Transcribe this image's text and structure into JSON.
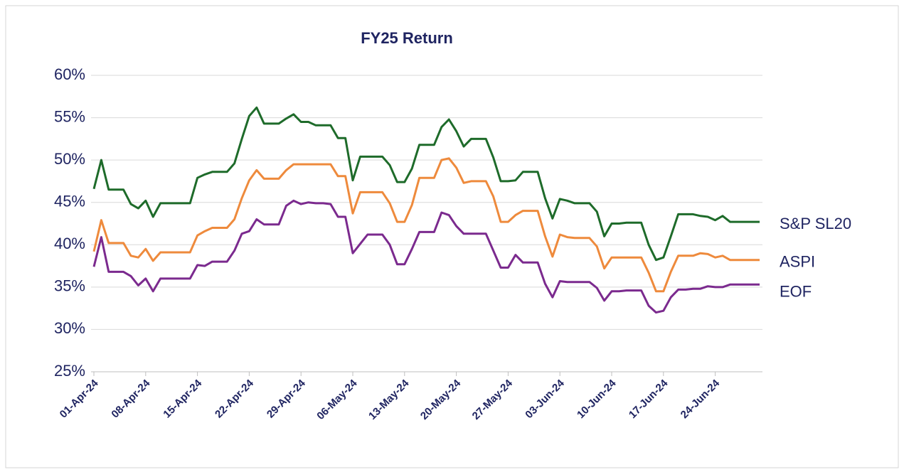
{
  "chart_data": {
    "type": "line",
    "title": "FY25 Return",
    "categories": [
      "01-Apr-24",
      null,
      null,
      null,
      null,
      null,
      null,
      "08-Apr-24",
      null,
      null,
      null,
      null,
      null,
      null,
      "15-Apr-24",
      null,
      null,
      null,
      null,
      null,
      null,
      "22-Apr-24",
      null,
      null,
      null,
      null,
      null,
      null,
      "29-Apr-24",
      null,
      null,
      null,
      null,
      null,
      null,
      "06-May-24",
      null,
      null,
      null,
      null,
      null,
      null,
      "13-May-24",
      null,
      null,
      null,
      null,
      null,
      null,
      "20-May-24",
      null,
      null,
      null,
      null,
      null,
      null,
      "27-May-24",
      null,
      null,
      null,
      null,
      null,
      null,
      "03-Jun-24",
      null,
      null,
      null,
      null,
      null,
      null,
      "10-Jun-24",
      null,
      null,
      null,
      null,
      null,
      null,
      "17-Jun-24",
      null,
      null,
      null,
      null,
      null,
      null,
      "24-Jun-24",
      null,
      null,
      null,
      null,
      null,
      null
    ],
    "series": [
      {
        "name": "S&P SL20",
        "color": "#1e6b2a",
        "values": [
          46.6,
          50.0,
          46.5,
          46.5,
          46.5,
          44.8,
          44.3,
          45.2,
          43.3,
          44.9,
          44.9,
          44.9,
          44.9,
          44.9,
          47.9,
          48.3,
          48.6,
          48.6,
          48.6,
          49.6,
          52.5,
          55.2,
          56.2,
          54.3,
          54.3,
          54.3,
          54.9,
          55.4,
          54.5,
          54.5,
          54.1,
          54.1,
          54.1,
          52.6,
          52.6,
          47.6,
          50.4,
          50.4,
          50.4,
          50.4,
          49.4,
          47.4,
          47.4,
          49.0,
          51.8,
          51.8,
          51.8,
          53.9,
          54.8,
          53.4,
          51.6,
          52.5,
          52.5,
          52.5,
          50.3,
          47.5,
          47.5,
          47.6,
          48.6,
          48.6,
          48.6,
          45.5,
          43.1,
          45.4,
          45.2,
          44.9,
          44.9,
          44.9,
          43.9,
          41.0,
          42.5,
          42.5,
          42.6,
          42.6,
          42.6,
          40.0,
          38.2,
          38.5,
          41.0,
          43.6,
          43.6,
          43.6,
          43.4,
          43.3,
          42.9,
          43.4,
          42.7,
          42.7,
          42.7,
          42.7,
          42.7
        ]
      },
      {
        "name": "ASPI",
        "color": "#ee8a3c",
        "values": [
          39.2,
          42.9,
          40.2,
          40.2,
          40.2,
          38.7,
          38.5,
          39.5,
          38.1,
          39.1,
          39.1,
          39.1,
          39.1,
          39.1,
          41.1,
          41.6,
          42.0,
          42.0,
          42.0,
          43.0,
          45.5,
          47.6,
          48.8,
          47.8,
          47.8,
          47.8,
          48.8,
          49.5,
          49.5,
          49.5,
          49.5,
          49.5,
          49.5,
          48.1,
          48.1,
          43.7,
          46.2,
          46.2,
          46.2,
          46.2,
          44.9,
          42.7,
          42.7,
          44.7,
          47.9,
          47.9,
          47.9,
          50.0,
          50.2,
          49.1,
          47.3,
          47.5,
          47.5,
          47.5,
          45.7,
          42.7,
          42.7,
          43.5,
          44.0,
          44.0,
          44.0,
          41.0,
          38.6,
          41.2,
          40.9,
          40.8,
          40.8,
          40.8,
          39.8,
          37.2,
          38.5,
          38.5,
          38.5,
          38.5,
          38.5,
          36.7,
          34.5,
          34.5,
          36.8,
          38.7,
          38.7,
          38.7,
          39.0,
          38.9,
          38.5,
          38.7,
          38.2,
          38.2,
          38.2,
          38.2,
          38.2
        ]
      },
      {
        "name": "EOF",
        "color": "#7b2a8e",
        "values": [
          37.4,
          40.9,
          36.8,
          36.8,
          36.8,
          36.3,
          35.2,
          36.0,
          34.5,
          36.0,
          36.0,
          36.0,
          36.0,
          36.0,
          37.6,
          37.5,
          38.0,
          38.0,
          38.0,
          39.3,
          41.3,
          41.6,
          43.0,
          42.4,
          42.4,
          42.4,
          44.6,
          45.2,
          44.8,
          45.0,
          44.9,
          44.9,
          44.8,
          43.3,
          43.3,
          39.0,
          40.1,
          41.2,
          41.2,
          41.2,
          40.0,
          37.7,
          37.7,
          39.5,
          41.5,
          41.5,
          41.5,
          43.8,
          43.5,
          42.2,
          41.3,
          41.3,
          41.3,
          41.3,
          39.3,
          37.3,
          37.3,
          38.8,
          37.9,
          37.9,
          37.9,
          35.4,
          33.8,
          35.7,
          35.6,
          35.6,
          35.6,
          35.6,
          34.9,
          33.4,
          34.5,
          34.5,
          34.6,
          34.6,
          34.6,
          32.8,
          32.0,
          32.2,
          33.8,
          34.7,
          34.7,
          34.8,
          34.8,
          35.1,
          35.0,
          35.0,
          35.3,
          35.3,
          35.3,
          35.3,
          35.3
        ]
      }
    ],
    "ylim": [
      25,
      60
    ],
    "yticks": [
      {
        "value": 25,
        "label": "25%"
      },
      {
        "value": 30,
        "label": "30%"
      },
      {
        "value": 35,
        "label": "35%"
      },
      {
        "value": 40,
        "label": "40%"
      },
      {
        "value": 45,
        "label": "45%"
      },
      {
        "value": 50,
        "label": "50%"
      },
      {
        "value": 55,
        "label": "55%"
      },
      {
        "value": 60,
        "label": "60%"
      }
    ],
    "grid": true,
    "legend": "right"
  }
}
